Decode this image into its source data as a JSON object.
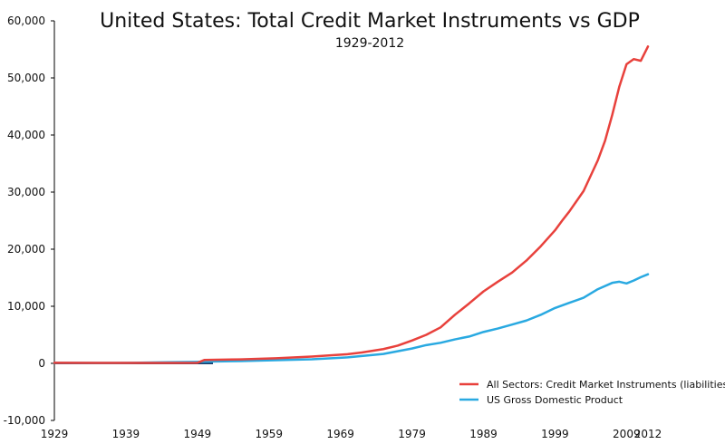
{
  "chart_data": {
    "type": "line",
    "title": "United States: Total Credit Market Instruments vs GDP",
    "subtitle": "1929-2012",
    "xlabel": "",
    "ylabel": "",
    "xlim": [
      1929,
      2012
    ],
    "ylim": [
      -10000,
      60000
    ],
    "x_ticks": [
      1929,
      1939,
      1949,
      1959,
      1969,
      1979,
      1989,
      1999,
      2009,
      2012
    ],
    "y_ticks": [
      -10000,
      0,
      10000,
      20000,
      30000,
      40000,
      50000,
      60000
    ],
    "y_tick_labels": [
      "-10,000",
      "0",
      "10,000",
      "20,000",
      "30,000",
      "40,000",
      "50,000",
      "60,000"
    ],
    "grid": false,
    "legend_position": "bottom-right",
    "series": [
      {
        "name": "All Sectors: Credit Market Instruments (liabilities)",
        "color": "#e8413c",
        "x": [
          1929,
          1935,
          1940,
          1945,
          1949,
          1950,
          1955,
          1960,
          1965,
          1970,
          1972,
          1975,
          1977,
          1979,
          1981,
          1983,
          1985,
          1987,
          1989,
          1991,
          1993,
          1995,
          1997,
          1999,
          2000,
          2001,
          2003,
          2005,
          2006,
          2007,
          2008,
          2009,
          2010,
          2011,
          2012
        ],
        "values": [
          100,
          80,
          80,
          80,
          100,
          600,
          700,
          900,
          1200,
          1600,
          1900,
          2500,
          3100,
          4000,
          5000,
          6300,
          8500,
          10500,
          12600,
          14300,
          15900,
          18000,
          20500,
          23300,
          25000,
          26600,
          30200,
          35600,
          39000,
          43500,
          48500,
          52400,
          53300,
          53000,
          55500
        ]
      },
      {
        "name": "US Gross Domestic Product",
        "color": "#29a9e1",
        "x": [
          1929,
          1935,
          1940,
          1945,
          1949,
          1950,
          1955,
          1960,
          1965,
          1970,
          1975,
          1979,
          1981,
          1983,
          1985,
          1987,
          1989,
          1991,
          1993,
          1995,
          1997,
          1999,
          2001,
          2003,
          2005,
          2007,
          2008,
          2009,
          2010,
          2011,
          2012
        ],
        "values": [
          100,
          70,
          100,
          200,
          260,
          300,
          400,
          550,
          720,
          1050,
          1650,
          2600,
          3200,
          3600,
          4200,
          4700,
          5500,
          6100,
          6800,
          7500,
          8500,
          9700,
          10600,
          11500,
          13000,
          14100,
          14300,
          14000,
          14500,
          15100,
          15600
        ]
      }
    ]
  }
}
